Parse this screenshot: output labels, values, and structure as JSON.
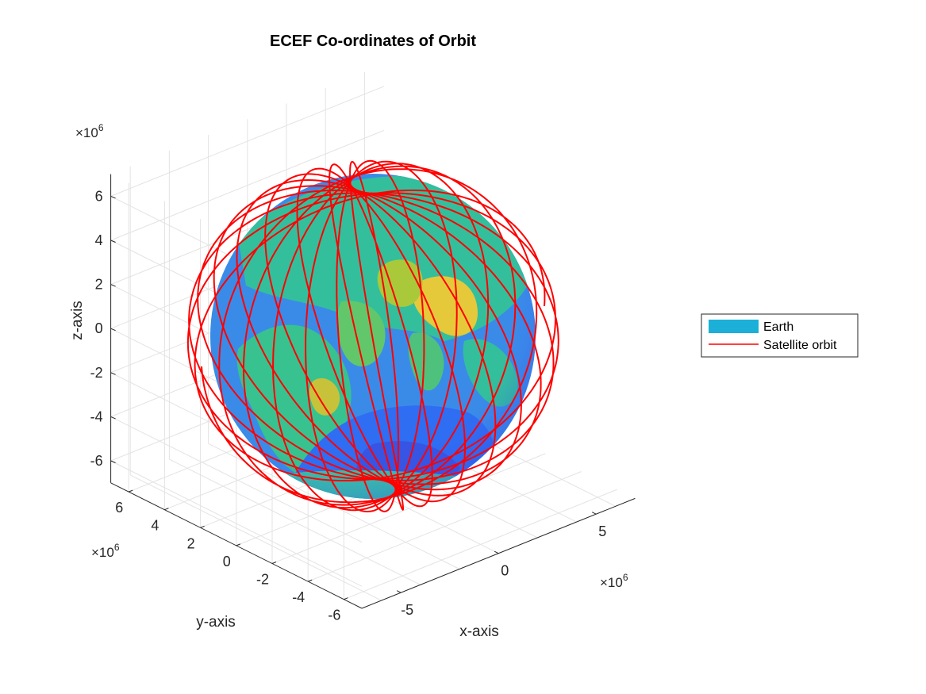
{
  "chart_data": {
    "type": "3d-surface-line",
    "title": "ECEF Co-ordinates of Orbit",
    "xlabel": "x-axis",
    "ylabel": "y-axis",
    "zlabel": "z-axis",
    "x_ticks": [
      "-5",
      "0",
      "5"
    ],
    "y_ticks": [
      "-6",
      "-4",
      "-2",
      "0",
      "2",
      "4",
      "6"
    ],
    "z_ticks": [
      "-6",
      "-4",
      "-2",
      "0",
      "2",
      "4",
      "6"
    ],
    "x_exponent": "×10",
    "y_exponent": "×10",
    "z_exponent": "×10",
    "exponent_power": "6",
    "xlim": [
      -7000000,
      7000000
    ],
    "ylim": [
      -7000000,
      7000000
    ],
    "zlim": [
      -7000000,
      7000000
    ],
    "grid": true,
    "legend_position": "outside-right",
    "series": [
      {
        "name": "Earth",
        "kind": "surface",
        "radius": 6371000,
        "color": "#1cb0d8"
      },
      {
        "name": "Satellite orbit",
        "kind": "line",
        "color": "#ff0000",
        "orbit_radius": 7000000,
        "inclination_deg": 97,
        "orbits": 15
      }
    ],
    "colormap": [
      "#3e26a8",
      "#2d6ffd",
      "#3fa8e8",
      "#2fc39a",
      "#85cc3f",
      "#e5b42f",
      "#f5e428"
    ]
  }
}
